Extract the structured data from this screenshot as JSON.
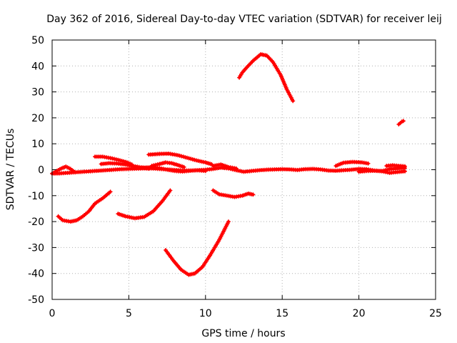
{
  "chart_data": {
    "type": "scatter",
    "title": "Day 362 of 2016, Sidereal Day-to-day VTEC variation (SDTVAR) for receiver leij",
    "xlabel": "GPS time / hours",
    "ylabel": "SDTVAR / TECUs",
    "xlim": [
      0,
      25
    ],
    "ylim": [
      -50,
      50
    ],
    "x_ticks": [
      0,
      5,
      10,
      15,
      20,
      25
    ],
    "y_ticks": [
      -50,
      -40,
      -30,
      -20,
      -10,
      0,
      10,
      20,
      30,
      40,
      50
    ],
    "x_tick_labels": [
      "0",
      "5",
      "10",
      "15",
      "20",
      "25"
    ],
    "y_tick_labels": [
      "-50",
      "-40",
      "-30",
      "-20",
      "-10",
      "0",
      "10",
      "20",
      "30",
      "40",
      "50"
    ],
    "grid": true,
    "color": "#ff0000",
    "marker": "plus",
    "series": [
      {
        "name": "track-1",
        "points": [
          [
            0.4,
            -18
          ],
          [
            0.7,
            -19.5
          ],
          [
            1.2,
            -20
          ],
          [
            1.6,
            -19.5
          ],
          [
            2.0,
            -18
          ],
          [
            2.4,
            -16
          ],
          [
            2.8,
            -13
          ],
          [
            3.3,
            -11
          ],
          [
            3.8,
            -8.5
          ]
        ]
      },
      {
        "name": "track-2",
        "points": [
          [
            4.3,
            -17
          ],
          [
            4.8,
            -18
          ],
          [
            5.4,
            -18.7
          ],
          [
            6.0,
            -18.2
          ],
          [
            6.6,
            -16
          ],
          [
            7.2,
            -12
          ],
          [
            7.7,
            -8
          ]
        ]
      },
      {
        "name": "track-3",
        "points": [
          [
            7.4,
            -31
          ],
          [
            7.9,
            -35
          ],
          [
            8.4,
            -38.5
          ],
          [
            8.9,
            -40.5
          ],
          [
            9.3,
            -40
          ],
          [
            9.8,
            -37.5
          ],
          [
            10.3,
            -33
          ],
          [
            10.9,
            -27
          ],
          [
            11.5,
            -20
          ]
        ]
      },
      {
        "name": "track-4",
        "points": [
          [
            10.5,
            -8
          ],
          [
            10.9,
            -9.5
          ],
          [
            11.4,
            -10
          ],
          [
            11.9,
            -10.5
          ],
          [
            12.4,
            -10
          ],
          [
            12.8,
            -9.2
          ],
          [
            13.1,
            -9.6
          ]
        ]
      },
      {
        "name": "track-5",
        "points": [
          [
            12.2,
            35.5
          ],
          [
            12.4,
            37.5
          ],
          [
            12.7,
            39.5
          ],
          [
            13.1,
            42
          ],
          [
            13.6,
            44.5
          ],
          [
            14.0,
            44
          ],
          [
            14.4,
            41.5
          ],
          [
            14.9,
            36.5
          ],
          [
            15.3,
            31
          ],
          [
            15.7,
            26.5
          ]
        ]
      },
      {
        "name": "track-6",
        "points": [
          [
            22.6,
            17.5
          ],
          [
            22.8,
            18.5
          ],
          [
            22.9,
            18.8
          ]
        ]
      },
      {
        "name": "track-7",
        "points": [
          [
            2.8,
            5
          ],
          [
            3.3,
            5
          ],
          [
            3.8,
            4.5
          ],
          [
            4.3,
            3.8
          ],
          [
            4.8,
            3
          ],
          [
            5.2,
            2
          ]
        ]
      },
      {
        "name": "track-8",
        "points": [
          [
            6.3,
            5.8
          ],
          [
            7.0,
            6.1
          ],
          [
            7.6,
            6.2
          ],
          [
            8.2,
            5.6
          ],
          [
            8.8,
            4.6
          ],
          [
            9.4,
            3.6
          ],
          [
            10.0,
            2.8
          ],
          [
            10.4,
            2.1
          ]
        ]
      },
      {
        "name": "track-9",
        "points": [
          [
            18.5,
            1.5
          ],
          [
            19.0,
            2.7
          ],
          [
            19.6,
            3.0
          ],
          [
            20.2,
            2.8
          ],
          [
            20.6,
            2.4
          ]
        ]
      },
      {
        "name": "track-10",
        "points": [
          [
            3.2,
            2.2
          ],
          [
            3.7,
            2.5
          ],
          [
            4.2,
            2.4
          ],
          [
            4.8,
            2.0
          ],
          [
            5.3,
            1.4
          ],
          [
            5.8,
            0.9
          ],
          [
            6.3,
            0.5
          ]
        ]
      },
      {
        "name": "track-11",
        "points": [
          [
            6.5,
            1.5
          ],
          [
            7.0,
            2.2
          ],
          [
            7.4,
            2.8
          ],
          [
            7.8,
            2.5
          ],
          [
            8.2,
            1.8
          ],
          [
            8.6,
            1.0
          ]
        ]
      },
      {
        "name": "track-12",
        "points": [
          [
            5.5,
            0.6
          ],
          [
            6.0,
            0.8
          ],
          [
            6.5,
            1.0
          ],
          [
            7.0,
            0.6
          ],
          [
            7.5,
            0.0
          ],
          [
            8.0,
            -0.5
          ],
          [
            8.5,
            -0.7
          ],
          [
            9.0,
            -0.4
          ],
          [
            9.5,
            -0.2
          ],
          [
            10.0,
            -0.5
          ]
        ]
      },
      {
        "name": "track-13",
        "points": [
          [
            0.0,
            -1.5
          ],
          [
            0.3,
            -0.5
          ],
          [
            0.6,
            0.5
          ],
          [
            0.9,
            1.2
          ],
          [
            1.2,
            0.3
          ],
          [
            1.5,
            -1.0
          ]
        ]
      },
      {
        "name": "track-14",
        "points": [
          [
            0.0,
            -1.5
          ],
          [
            0.5,
            -1.4
          ],
          [
            1.0,
            -1.2
          ],
          [
            1.5,
            -1.0
          ],
          [
            2.0,
            -0.8
          ],
          [
            2.5,
            -0.6
          ],
          [
            3.0,
            -0.4
          ],
          [
            3.5,
            -0.2
          ],
          [
            4.0,
            0.0
          ],
          [
            4.5,
            0.2
          ],
          [
            5.0,
            0.3
          ],
          [
            5.5,
            0.4
          ],
          [
            6.0,
            0.5
          ],
          [
            6.5,
            0.5
          ],
          [
            7.0,
            0.3
          ],
          [
            7.5,
            0.1
          ],
          [
            8.0,
            -0.1
          ],
          [
            8.5,
            -0.3
          ],
          [
            9.0,
            -0.3
          ],
          [
            9.5,
            -0.2
          ],
          [
            10.0,
            0.0
          ],
          [
            10.5,
            0.3
          ],
          [
            11.0,
            0.8
          ],
          [
            11.5,
            0.5
          ],
          [
            12.0,
            -0.2
          ],
          [
            12.5,
            -0.8
          ],
          [
            13.0,
            -0.5
          ],
          [
            13.5,
            -0.2
          ],
          [
            14.0,
            0.0
          ],
          [
            14.5,
            0.1
          ],
          [
            15.0,
            0.2
          ],
          [
            15.5,
            0.1
          ],
          [
            16.0,
            -0.1
          ],
          [
            16.5,
            0.2
          ],
          [
            17.0,
            0.3
          ],
          [
            17.5,
            0.1
          ],
          [
            18.0,
            -0.3
          ],
          [
            18.5,
            -0.4
          ],
          [
            19.0,
            -0.2
          ],
          [
            19.5,
            0.0
          ],
          [
            20.0,
            0.3
          ],
          [
            20.5,
            0.2
          ],
          [
            21.0,
            -0.3
          ],
          [
            21.5,
            -0.5
          ],
          [
            22.0,
            0.2
          ],
          [
            22.5,
            0.5
          ],
          [
            23.0,
            0.6
          ]
        ]
      },
      {
        "name": "track-15",
        "points": [
          [
            10.5,
            1.5
          ],
          [
            11.0,
            2.0
          ],
          [
            11.5,
            1.0
          ],
          [
            12.0,
            0.5
          ]
        ]
      },
      {
        "name": "track-16",
        "points": [
          [
            20.0,
            -0.8
          ],
          [
            20.5,
            -0.5
          ],
          [
            21.0,
            -0.4
          ],
          [
            21.5,
            -0.6
          ],
          [
            22.0,
            -1.2
          ],
          [
            22.5,
            -0.9
          ],
          [
            23.0,
            -0.6
          ]
        ]
      },
      {
        "name": "track-17",
        "points": [
          [
            21.8,
            1.5
          ],
          [
            22.2,
            1.7
          ],
          [
            22.6,
            1.5
          ],
          [
            23.0,
            1.3
          ]
        ]
      }
    ]
  }
}
